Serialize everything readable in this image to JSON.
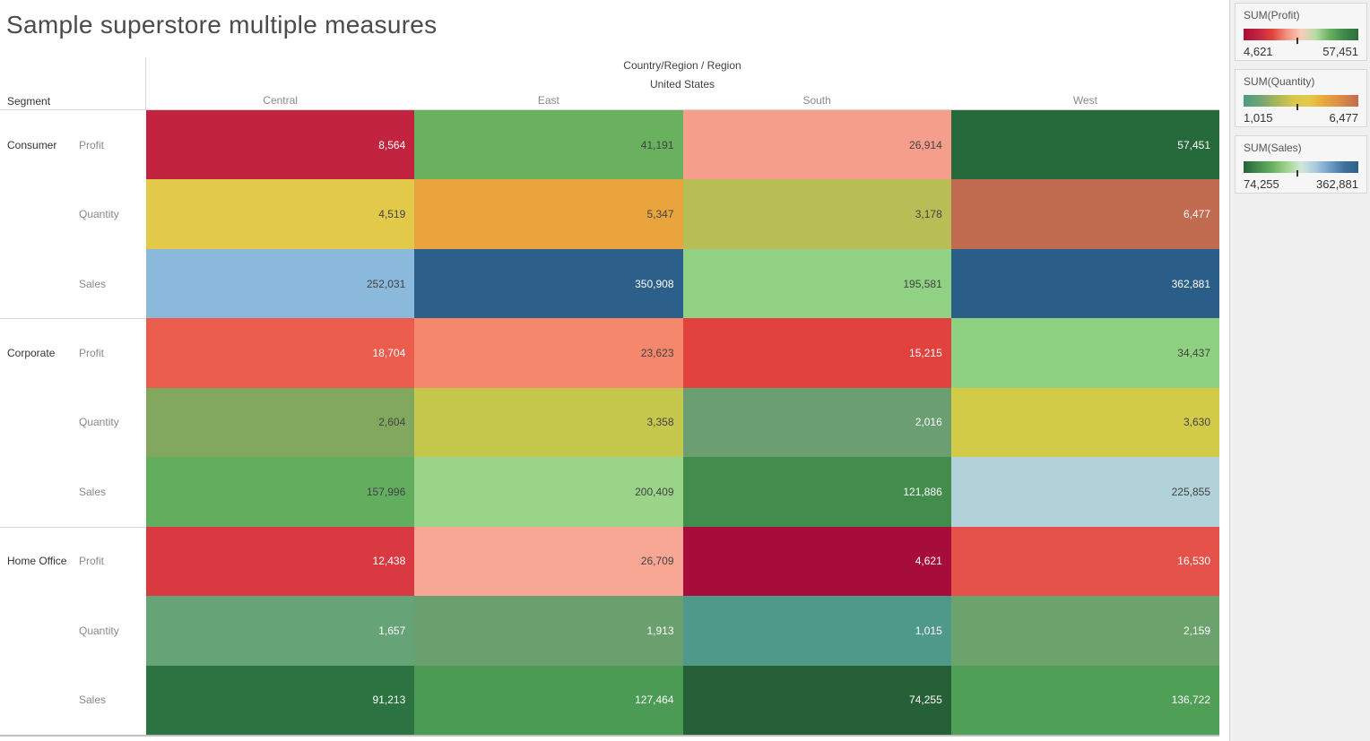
{
  "chart_data": {
    "type": "heatmap",
    "title": "Sample superstore multiple measures",
    "column_field": "Country/Region / Region",
    "column_group": "United States",
    "row_field": "Segment",
    "columns": [
      "Central",
      "East",
      "South",
      "West"
    ],
    "rows": [
      {
        "segment": "Consumer",
        "measure": "Profit",
        "values": [
          8564,
          41191,
          26914,
          57451
        ],
        "labels": [
          "8,564",
          "41,191",
          "26,914",
          "57,451"
        ],
        "bg": [
          "#c22440",
          "#69b15e",
          "#f69e8c",
          "#26693b"
        ],
        "fg": [
          "#ffffff",
          "#424242",
          "#424242",
          "#ffffff"
        ]
      },
      {
        "segment": "Consumer",
        "measure": "Quantity",
        "values": [
          4519,
          5347,
          3178,
          6477
        ],
        "labels": [
          "4,519",
          "5,347",
          "3,178",
          "6,477"
        ],
        "bg": [
          "#e3c94a",
          "#e9a43e",
          "#b9bd55",
          "#c16b51"
        ],
        "fg": [
          "#424242",
          "#424242",
          "#424242",
          "#ffffff"
        ]
      },
      {
        "segment": "Consumer",
        "measure": "Sales",
        "values": [
          252031,
          350908,
          195581,
          362881
        ],
        "labels": [
          "252,031",
          "350,908",
          "195,581",
          "362,881"
        ],
        "bg": [
          "#8ab9db",
          "#2d5f8b",
          "#90d183",
          "#2b5d89"
        ],
        "fg": [
          "#424242",
          "#ffffff",
          "#424242",
          "#ffffff"
        ]
      },
      {
        "segment": "Corporate",
        "measure": "Profit",
        "values": [
          18704,
          23623,
          15215,
          34437
        ],
        "labels": [
          "18,704",
          "23,623",
          "15,215",
          "34,437"
        ],
        "bg": [
          "#ea5c4c",
          "#f4876c",
          "#e2423e",
          "#8ed180"
        ],
        "fg": [
          "#ffffff",
          "#424242",
          "#ffffff",
          "#424242"
        ]
      },
      {
        "segment": "Corporate",
        "measure": "Quantity",
        "values": [
          2604,
          3358,
          2016,
          3630
        ],
        "labels": [
          "2,604",
          "3,358",
          "2,016",
          "3,630"
        ],
        "bg": [
          "#81a85e",
          "#c6c74d",
          "#6b9e71",
          "#d1cb48"
        ],
        "fg": [
          "#424242",
          "#424242",
          "#ffffff",
          "#424242"
        ]
      },
      {
        "segment": "Corporate",
        "measure": "Sales",
        "values": [
          157996,
          200409,
          121886,
          225855
        ],
        "labels": [
          "157,996",
          "200,409",
          "121,886",
          "225,855"
        ],
        "bg": [
          "#63ad5e",
          "#99d489",
          "#428d4c",
          "#b2d2d9"
        ],
        "fg": [
          "#424242",
          "#424242",
          "#ffffff",
          "#424242"
        ]
      },
      {
        "segment": "Home Office",
        "measure": "Profit",
        "values": [
          12438,
          26709,
          4621,
          16530
        ],
        "labels": [
          "12,438",
          "26,709",
          "4,621",
          "16,530"
        ],
        "bg": [
          "#d93a42",
          "#f8a794",
          "#a60d3a",
          "#e5524a"
        ],
        "fg": [
          "#ffffff",
          "#424242",
          "#ffffff",
          "#ffffff"
        ]
      },
      {
        "segment": "Home Office",
        "measure": "Quantity",
        "values": [
          1657,
          1913,
          1015,
          2159
        ],
        "labels": [
          "1,657",
          "1,913",
          "1,015",
          "2,159"
        ],
        "bg": [
          "#66a376",
          "#6aa06e",
          "#4f998a",
          "#6ca26b"
        ],
        "fg": [
          "#ffffff",
          "#ffffff",
          "#ffffff",
          "#ffffff"
        ]
      },
      {
        "segment": "Home Office",
        "measure": "Sales",
        "values": [
          91213,
          127464,
          74255,
          136722
        ],
        "labels": [
          "91,213",
          "127,464",
          "74,255",
          "136,722"
        ],
        "bg": [
          "#2b7340",
          "#4c9b54",
          "#266037",
          "#4f9f56"
        ],
        "fg": [
          "#ffffff",
          "#ffffff",
          "#ffffff",
          "#ffffff"
        ]
      }
    ],
    "legends": [
      {
        "title": "SUM(Profit)",
        "min": 4621,
        "max": 57451,
        "min_label": "4,621",
        "max_label": "57,451",
        "gradient": [
          "#a90d3a",
          "#c22440",
          "#e2423e",
          "#f1927e",
          "#f9cdbc",
          "#b9dca6",
          "#69b15e",
          "#3f8a4b",
          "#2a6e3e"
        ],
        "tick_fraction": 0.46
      },
      {
        "title": "SUM(Quantity)",
        "min": 1015,
        "max": 6477,
        "min_label": "1,015",
        "max_label": "6,477",
        "gradient": [
          "#4f998a",
          "#6fa472",
          "#a8b65c",
          "#d8c64b",
          "#e5c946",
          "#e8a43e",
          "#d98a46",
          "#c16b51"
        ],
        "tick_fraction": 0.46
      },
      {
        "title": "SUM(Sales)",
        "min": 74255,
        "max": 362881,
        "min_label": "74,255",
        "max_label": "362,881",
        "gradient": [
          "#26603a",
          "#428d4c",
          "#69b15e",
          "#9ed48f",
          "#d2e7d5",
          "#a9cbe0",
          "#6f9fc6",
          "#41729f",
          "#2d5f8b"
        ],
        "tick_fraction": 0.46
      }
    ],
    "layout": {
      "legend_card_tops": [
        3,
        77,
        151
      ],
      "segment_divider_tops": [
        355,
        588
      ]
    }
  }
}
